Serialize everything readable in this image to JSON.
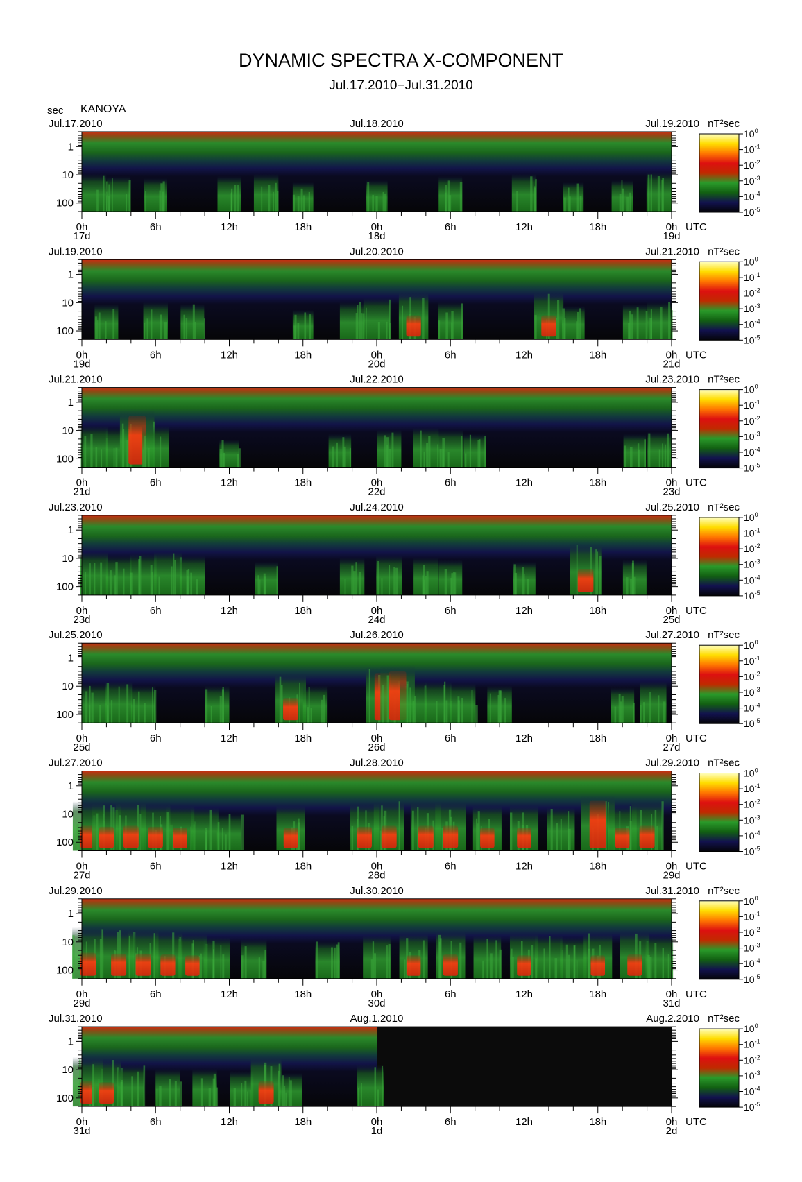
{
  "page": {
    "title": "DYNAMIC SPECTRA X-COMPONENT",
    "subtitle": "Jul.17.2010−Jul.31.2010",
    "station": "KANOYA",
    "y_unit": "sec",
    "colorbar_unit": "nT²sec",
    "time_unit": "UTC"
  },
  "chart_data": {
    "type": "heatmap",
    "title": "DYNAMIC SPECTRA X-COMPONENT",
    "subtitle": "Jul.17.2010−Jul.31.2010",
    "station": "KANOYA",
    "ylabel": "sec",
    "y_scale": "log",
    "y_reversed": true,
    "y_range": [
      0.3,
      200
    ],
    "y_ticks": [
      1,
      10,
      100
    ],
    "y_tick_labels": [
      "1",
      "10",
      "100"
    ],
    "x_unit": "UTC",
    "x_range_hours": [
      0,
      48
    ],
    "x_ticks_hours": [
      0,
      6,
      12,
      18,
      24,
      30,
      36,
      42,
      48
    ],
    "x_tick_labels": [
      "0h",
      "6h",
      "12h",
      "18h",
      "0h",
      "6h",
      "12h",
      "18h",
      "0h"
    ],
    "colorbar": {
      "unit": "nT²sec",
      "scale": "log",
      "range": [
        1e-05,
        1
      ],
      "ticks": [
        1,
        0.1,
        0.01,
        0.001,
        0.0001,
        1e-05
      ],
      "tick_base": [
        "10",
        "10",
        "10",
        "10",
        "10",
        "10"
      ],
      "tick_exp": [
        "0",
        "-1",
        "-2",
        "-3",
        "-4",
        "-5"
      ],
      "colors": [
        "#ffffc0",
        "#ffdd00",
        "#ff7700",
        "#dd1010",
        "#c02a00",
        "#2a9a2a",
        "#126012",
        "#12124e",
        "#040408"
      ]
    },
    "panels": [
      {
        "start": "Jul.17.2010",
        "mid": "Jul.18.2010",
        "end": "Jul.19.2010",
        "days": [
          "17d",
          "18d",
          "19d"
        ],
        "data_hours": 48,
        "bursts": [
          [
            1,
            0.5
          ],
          [
            3,
            0.45
          ],
          [
            6,
            0.4
          ],
          [
            12,
            0.45
          ],
          [
            15,
            0.5
          ],
          [
            18,
            0.3
          ],
          [
            24,
            0.35
          ],
          [
            30,
            0.45
          ],
          [
            36,
            0.5
          ],
          [
            40,
            0.3
          ],
          [
            44,
            0.35
          ],
          [
            47,
            0.55
          ]
        ]
      },
      {
        "start": "Jul.19.2010",
        "mid": "Jul.20.2010",
        "end": "Jul.21.2010",
        "days": [
          "19d",
          "20d",
          "21d"
        ],
        "data_hours": 48,
        "bursts": [
          [
            2,
            0.45
          ],
          [
            6,
            0.5
          ],
          [
            9,
            0.45
          ],
          [
            18,
            0.3
          ],
          [
            22,
            0.5
          ],
          [
            24,
            0.6
          ],
          [
            27,
            0.75
          ],
          [
            30,
            0.5
          ],
          [
            38,
            0.75
          ],
          [
            40,
            0.4
          ],
          [
            45,
            0.45
          ],
          [
            47,
            0.5
          ]
        ]
      },
      {
        "start": "Jul.21.2010",
        "mid": "Jul.22.2010",
        "end": "Jul.23.2010",
        "days": [
          "21d",
          "22d",
          "23d"
        ],
        "data_hours": 48,
        "bursts": [
          [
            1,
            0.6
          ],
          [
            3,
            0.55
          ],
          [
            4.5,
            1.0
          ],
          [
            6,
            0.6
          ],
          [
            12,
            0.25
          ],
          [
            21,
            0.4
          ],
          [
            25,
            0.5
          ],
          [
            28,
            0.55
          ],
          [
            30,
            0.5
          ],
          [
            32,
            0.4
          ],
          [
            45,
            0.4
          ],
          [
            47,
            0.45
          ]
        ]
      },
      {
        "start": "Jul.23.2010",
        "mid": "Jul.24.2010",
        "end": "Jul.25.2010",
        "days": [
          "23d",
          "24d",
          "25d"
        ],
        "data_hours": 48,
        "bursts": [
          [
            1,
            0.65
          ],
          [
            3,
            0.55
          ],
          [
            5,
            0.6
          ],
          [
            7,
            0.65
          ],
          [
            9,
            0.55
          ],
          [
            15,
            0.4
          ],
          [
            22,
            0.5
          ],
          [
            25,
            0.55
          ],
          [
            28,
            0.5
          ],
          [
            30,
            0.45
          ],
          [
            36,
            0.4
          ],
          [
            41,
            0.85
          ],
          [
            45,
            0.45
          ]
        ]
      },
      {
        "start": "Jul.25.2010",
        "mid": "Jul.26.2010",
        "end": "Jul.27.2010",
        "days": [
          "25d",
          "26d",
          "27d"
        ],
        "data_hours": 48,
        "bursts": [
          [
            1,
            0.55
          ],
          [
            3,
            0.6
          ],
          [
            5,
            0.5
          ],
          [
            11,
            0.5
          ],
          [
            17,
            0.8
          ],
          [
            19,
            0.5
          ],
          [
            24.5,
            0.95
          ],
          [
            25.7,
            1.0
          ],
          [
            27,
            0.6
          ],
          [
            29,
            0.6
          ],
          [
            31,
            0.55
          ],
          [
            34,
            0.5
          ],
          [
            44,
            0.45
          ],
          [
            46.5,
            0.6
          ]
        ]
      },
      {
        "start": "Jul.27.2010",
        "mid": "Jul.28.2010",
        "end": "Jul.29.2010",
        "days": [
          "27d",
          "28d",
          "29d"
        ],
        "data_hours": 48,
        "bursts": [
          [
            0.5,
            0.8
          ],
          [
            2,
            0.75
          ],
          [
            4,
            0.8
          ],
          [
            6,
            0.75
          ],
          [
            8,
            0.7
          ],
          [
            10,
            0.65
          ],
          [
            12,
            0.5
          ],
          [
            17,
            0.7
          ],
          [
            23,
            0.75
          ],
          [
            25,
            0.8
          ],
          [
            28,
            0.8
          ],
          [
            30,
            0.8
          ],
          [
            33,
            0.7
          ],
          [
            36,
            0.7
          ],
          [
            39,
            0.65
          ],
          [
            42,
            0.95
          ],
          [
            44,
            0.7
          ],
          [
            46,
            0.8
          ]
        ]
      },
      {
        "start": "Jul.29.2010",
        "mid": "Jul.30.2010",
        "end": "Jul.31.2010",
        "days": [
          "29d",
          "30d",
          "31d"
        ],
        "data_hours": 48,
        "bursts": [
          [
            0.5,
            0.85
          ],
          [
            3,
            0.8
          ],
          [
            5,
            0.8
          ],
          [
            7,
            0.75
          ],
          [
            9,
            0.7
          ],
          [
            11,
            0.6
          ],
          [
            14,
            0.55
          ],
          [
            20,
            0.5
          ],
          [
            24,
            0.65
          ],
          [
            27,
            0.7
          ],
          [
            30,
            0.75
          ],
          [
            33,
            0.65
          ],
          [
            36,
            0.7
          ],
          [
            38,
            0.65
          ],
          [
            40,
            0.6
          ],
          [
            42,
            0.7
          ],
          [
            45,
            0.75
          ],
          [
            47,
            0.65
          ]
        ]
      },
      {
        "start": "Jul.31.2010",
        "mid": "Aug.1.2010",
        "end": "Aug.2.2010",
        "days": [
          "31d",
          "1d",
          "2d"
        ],
        "data_hours": 24,
        "bursts": [
          [
            0.5,
            0.8
          ],
          [
            2,
            0.75
          ],
          [
            4,
            0.6
          ],
          [
            7,
            0.5
          ],
          [
            10,
            0.5
          ],
          [
            13,
            0.45
          ],
          [
            15,
            0.8
          ],
          [
            17,
            0.4
          ],
          [
            23.5,
            0.6
          ]
        ]
      }
    ]
  }
}
